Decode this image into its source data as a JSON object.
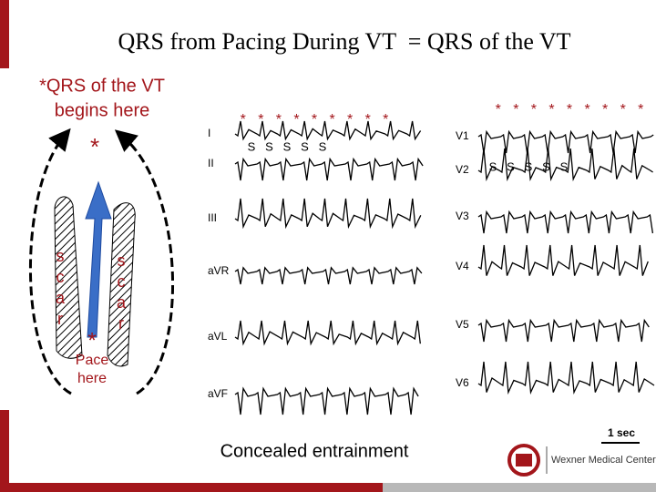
{
  "title": "QRS from Pacing During VT  = QRS of the VT",
  "diagram": {
    "caption": [
      "*QRS of the VT",
      "begins here"
    ],
    "top_star": "*",
    "scar_left": [
      "s",
      "c",
      "a",
      "r"
    ],
    "scar_right": [
      "s",
      "c",
      "a",
      "r"
    ],
    "pace_star": "*",
    "pace_label": [
      "Pace",
      "here"
    ]
  },
  "ecg_left": {
    "leads": [
      "I",
      "II",
      "III",
      "aVR",
      "aVL",
      "aVF"
    ],
    "stars": "*   *   *   *   *   *   *   *   *",
    "s_marks": "S   S   S   S   S"
  },
  "ecg_right": {
    "leads": [
      "V1",
      "V2",
      "V3",
      "V4",
      "V5",
      "V6"
    ],
    "stars": "*   *   *   *   *   *   *   *   *",
    "s_marks": "S   S   S   S   S"
  },
  "scale": "1 sec",
  "caption": "Concealed entrainment",
  "footer": {
    "logo": "Wexner Medical Center"
  }
}
